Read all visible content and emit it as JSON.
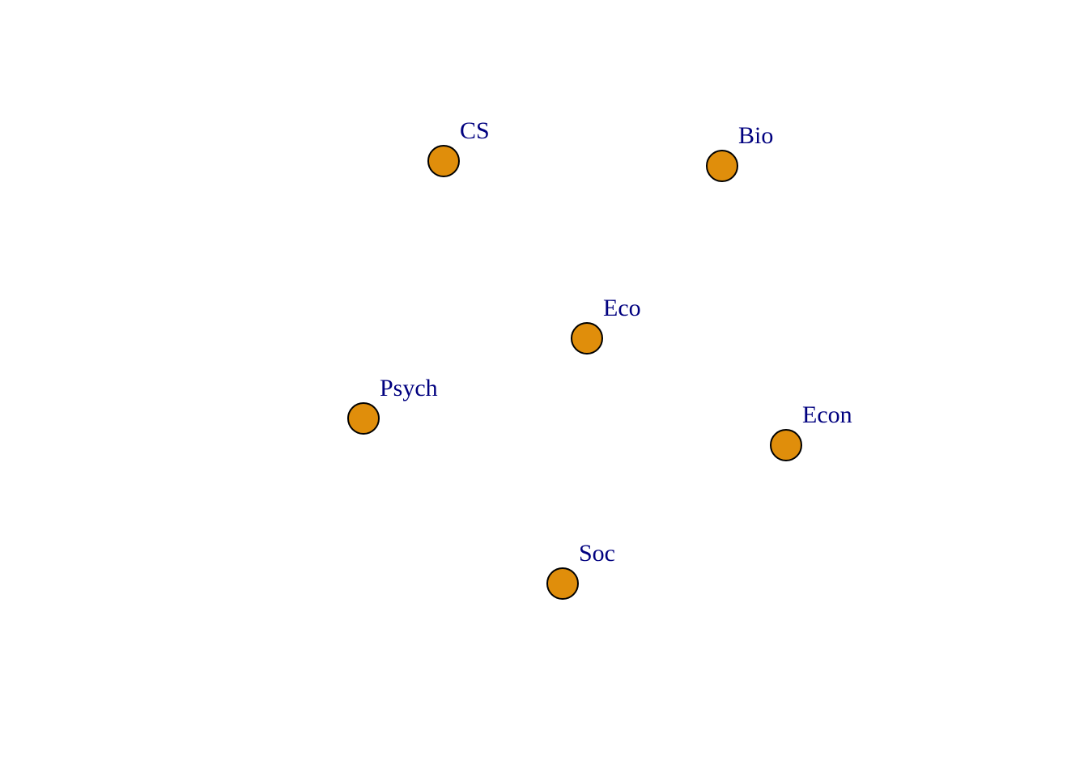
{
  "diagram": {
    "type": "network-graph",
    "node_fill": "#E08E0B",
    "node_stroke": "#000000",
    "label_color": "#00007F",
    "background": "#FFFFFF",
    "nodes": [
      {
        "id": "cs",
        "label": "CS"
      },
      {
        "id": "bio",
        "label": "Bio"
      },
      {
        "id": "eco",
        "label": "Eco"
      },
      {
        "id": "psych",
        "label": "Psych"
      },
      {
        "id": "econ",
        "label": "Econ"
      },
      {
        "id": "soc",
        "label": "Soc"
      }
    ],
    "edges": []
  }
}
